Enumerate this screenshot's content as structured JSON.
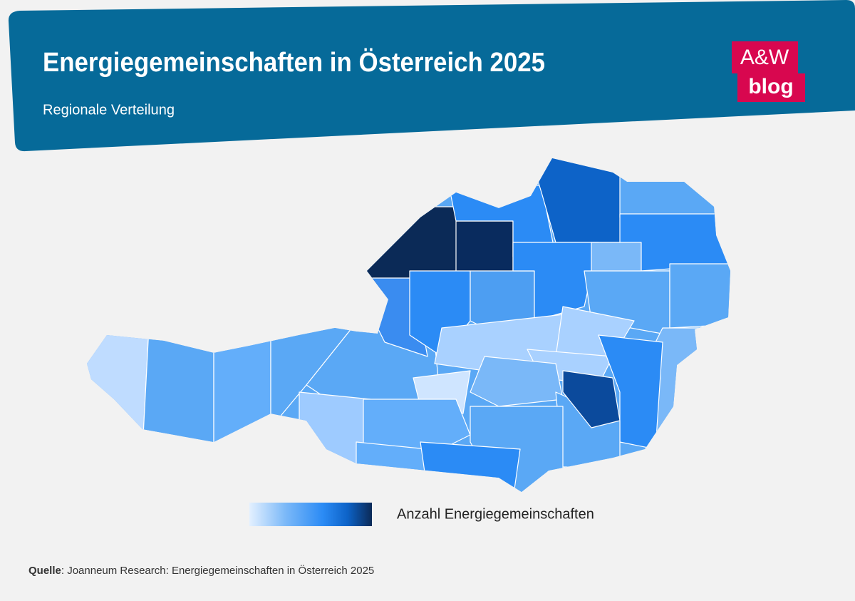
{
  "header": {
    "title": "Energiegemeinschaften in Österreich 2025",
    "subtitle": "Regionale Verteilung"
  },
  "logo": {
    "line1": "A&W",
    "line2": "blog"
  },
  "legend": {
    "label": "Anzahl Energiegemeinschaften"
  },
  "source": {
    "label": "Quelle",
    "text": ": Joanneum Research: Energiegemeinschaften in Österreich 2025"
  }
}
